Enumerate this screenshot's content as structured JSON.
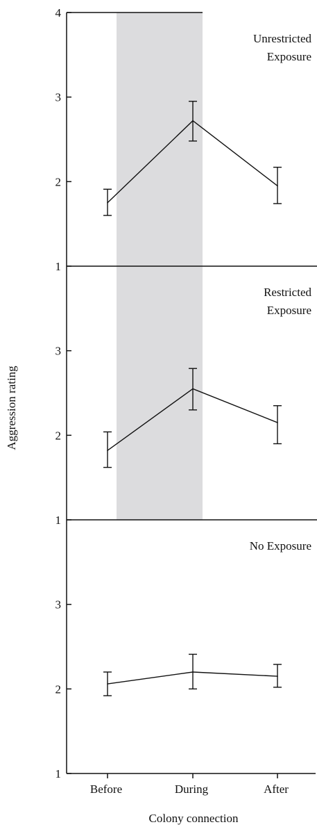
{
  "colors": {
    "line": "#111111",
    "shade": "#dcdcde",
    "background": "#ffffff"
  },
  "chart_data": {
    "type": "line",
    "xlabel": "Colony connection",
    "ylabel": "Aggression rating",
    "categories": [
      "Before",
      "During",
      "After"
    ],
    "ylim": [
      1,
      4
    ],
    "grid": false,
    "shaded_category": "During",
    "panels": [
      {
        "annotation": [
          "Unrestricted",
          "Exposure"
        ],
        "y_ticks": [
          "1",
          "2",
          "3",
          "4"
        ],
        "values": [
          1.75,
          2.72,
          1.95
        ],
        "error_low": [
          1.6,
          2.48,
          1.74
        ],
        "error_high": [
          1.91,
          2.95,
          2.17
        ]
      },
      {
        "annotation": [
          "Restricted",
          "Exposure"
        ],
        "y_ticks": [
          "1",
          "2",
          "3"
        ],
        "values": [
          1.82,
          2.55,
          2.15
        ],
        "error_low": [
          1.62,
          2.3,
          1.9
        ],
        "error_high": [
          2.04,
          2.79,
          2.35
        ]
      },
      {
        "annotation": [
          "No Exposure"
        ],
        "y_ticks": [
          "1",
          "2",
          "3"
        ],
        "values": [
          2.06,
          2.2,
          2.15
        ],
        "error_low": [
          1.92,
          2.0,
          2.02
        ],
        "error_high": [
          2.2,
          2.41,
          2.29
        ]
      }
    ]
  }
}
